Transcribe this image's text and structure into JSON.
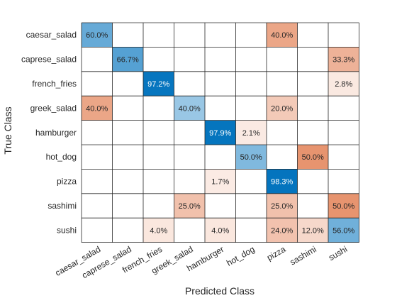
{
  "chart_data": {
    "type": "heatmap",
    "title": "",
    "xlabel": "Predicted Class",
    "ylabel": "True Class",
    "classes": [
      "caesar_salad",
      "caprese_salad",
      "french_fries",
      "greek_salad",
      "hamburger",
      "hot_dog",
      "pizza",
      "sashimi",
      "sushi"
    ],
    "value_format": "percent",
    "values": [
      [
        60.0,
        0,
        0,
        0,
        0,
        0,
        40.0,
        0,
        0
      ],
      [
        0,
        66.7,
        0,
        0,
        0,
        0,
        0,
        0,
        33.3
      ],
      [
        0,
        0,
        97.2,
        0,
        0,
        0,
        0,
        0,
        2.8
      ],
      [
        40.0,
        0,
        0,
        40.0,
        0,
        0,
        20.0,
        0,
        0
      ],
      [
        0,
        0,
        0,
        0,
        97.9,
        2.1,
        0,
        0,
        0
      ],
      [
        0,
        0,
        0,
        0,
        0,
        50.0,
        0,
        50.0,
        0
      ],
      [
        0,
        0,
        0,
        0,
        1.7,
        0,
        98.3,
        0,
        0
      ],
      [
        0,
        0,
        0,
        25.0,
        0,
        0,
        25.0,
        0,
        50.0
      ],
      [
        0,
        0,
        4.0,
        0,
        4.0,
        0,
        24.0,
        12.0,
        56.0
      ]
    ],
    "colors": {
      "correct": "#0072bd",
      "incorrect": "#d95319",
      "grid": "#262626",
      "background": "#ffffff"
    },
    "grid": true,
    "legend": "none"
  }
}
